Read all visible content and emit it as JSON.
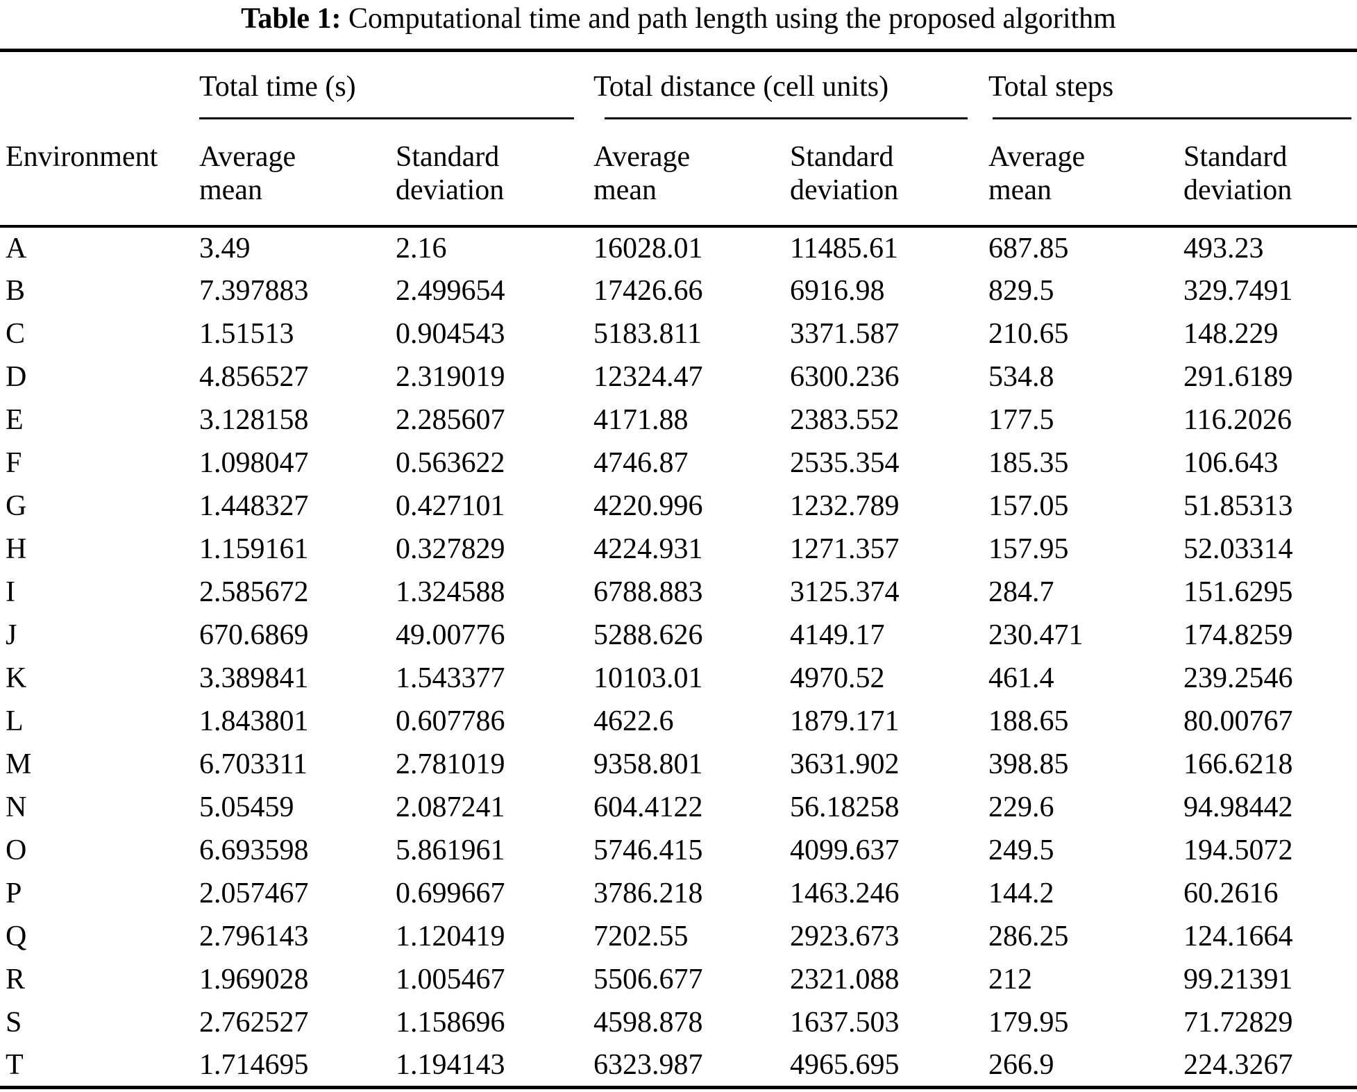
{
  "table": {
    "title_label": "Table 1:",
    "title_text": "Computational time and path length using the proposed algorithm",
    "env_header": "Environment",
    "groups": [
      {
        "label": "Total time (s)"
      },
      {
        "label": "Total distance (cell units)"
      },
      {
        "label": "Total steps"
      }
    ],
    "columns": [
      {
        "line1": "Average",
        "line2": "mean"
      },
      {
        "line1": "Standard",
        "line2": "deviation"
      },
      {
        "line1": "Average",
        "line2": "mean"
      },
      {
        "line1": "Standard",
        "line2": "deviation"
      },
      {
        "line1": "Average",
        "line2": "mean"
      },
      {
        "line1": "Standard",
        "line2": "deviation"
      }
    ],
    "rows": [
      {
        "env": "A",
        "values": [
          "3.49",
          "2.16",
          "16028.01",
          "11485.61",
          "687.85",
          "493.23"
        ]
      },
      {
        "env": "B",
        "values": [
          "7.397883",
          "2.499654",
          "17426.66",
          "6916.98",
          "829.5",
          "329.7491"
        ]
      },
      {
        "env": "C",
        "values": [
          "1.51513",
          "0.904543",
          "5183.811",
          "3371.587",
          "210.65",
          "148.229"
        ]
      },
      {
        "env": "D",
        "values": [
          "4.856527",
          "2.319019",
          "12324.47",
          "6300.236",
          "534.8",
          "291.6189"
        ]
      },
      {
        "env": "E",
        "values": [
          "3.128158",
          "2.285607",
          "4171.88",
          "2383.552",
          "177.5",
          "116.2026"
        ]
      },
      {
        "env": "F",
        "values": [
          "1.098047",
          "0.563622",
          "4746.87",
          "2535.354",
          "185.35",
          "106.643"
        ]
      },
      {
        "env": "G",
        "values": [
          "1.448327",
          "0.427101",
          "4220.996",
          "1232.789",
          "157.05",
          "51.85313"
        ]
      },
      {
        "env": "H",
        "values": [
          "1.159161",
          "0.327829",
          "4224.931",
          "1271.357",
          "157.95",
          "52.03314"
        ]
      },
      {
        "env": "I",
        "values": [
          "2.585672",
          "1.324588",
          "6788.883",
          "3125.374",
          "284.7",
          "151.6295"
        ]
      },
      {
        "env": "J",
        "values": [
          "670.6869",
          "49.00776",
          "5288.626",
          "4149.17",
          "230.471",
          "174.8259"
        ]
      },
      {
        "env": "K",
        "values": [
          "3.389841",
          "1.543377",
          "10103.01",
          "4970.52",
          "461.4",
          "239.2546"
        ]
      },
      {
        "env": "L",
        "values": [
          "1.843801",
          "0.607786",
          "4622.6",
          "1879.171",
          "188.65",
          "80.00767"
        ]
      },
      {
        "env": "M",
        "values": [
          "6.703311",
          "2.781019",
          "9358.801",
          "3631.902",
          "398.85",
          "166.6218"
        ]
      },
      {
        "env": "N",
        "values": [
          "5.05459",
          "2.087241",
          "604.4122",
          "56.18258",
          "229.6",
          "94.98442"
        ]
      },
      {
        "env": "O",
        "values": [
          "6.693598",
          "5.861961",
          "5746.415",
          "4099.637",
          "249.5",
          "194.5072"
        ]
      },
      {
        "env": "P",
        "values": [
          "2.057467",
          "0.699667",
          "3786.218",
          "1463.246",
          "144.2",
          "60.2616"
        ]
      },
      {
        "env": "Q",
        "values": [
          "2.796143",
          "1.120419",
          "7202.55",
          "2923.673",
          "286.25",
          "124.1664"
        ]
      },
      {
        "env": "R",
        "values": [
          "1.969028",
          "1.005467",
          "5506.677",
          "2321.088",
          "212",
          "99.21391"
        ]
      },
      {
        "env": "S",
        "values": [
          "2.762527",
          "1.158696",
          "4598.878",
          "1637.503",
          "179.95",
          "71.72829"
        ]
      },
      {
        "env": "T",
        "values": [
          "1.714695",
          "1.194143",
          "6323.987",
          "4965.695",
          "266.9",
          "224.3267"
        ]
      }
    ]
  }
}
